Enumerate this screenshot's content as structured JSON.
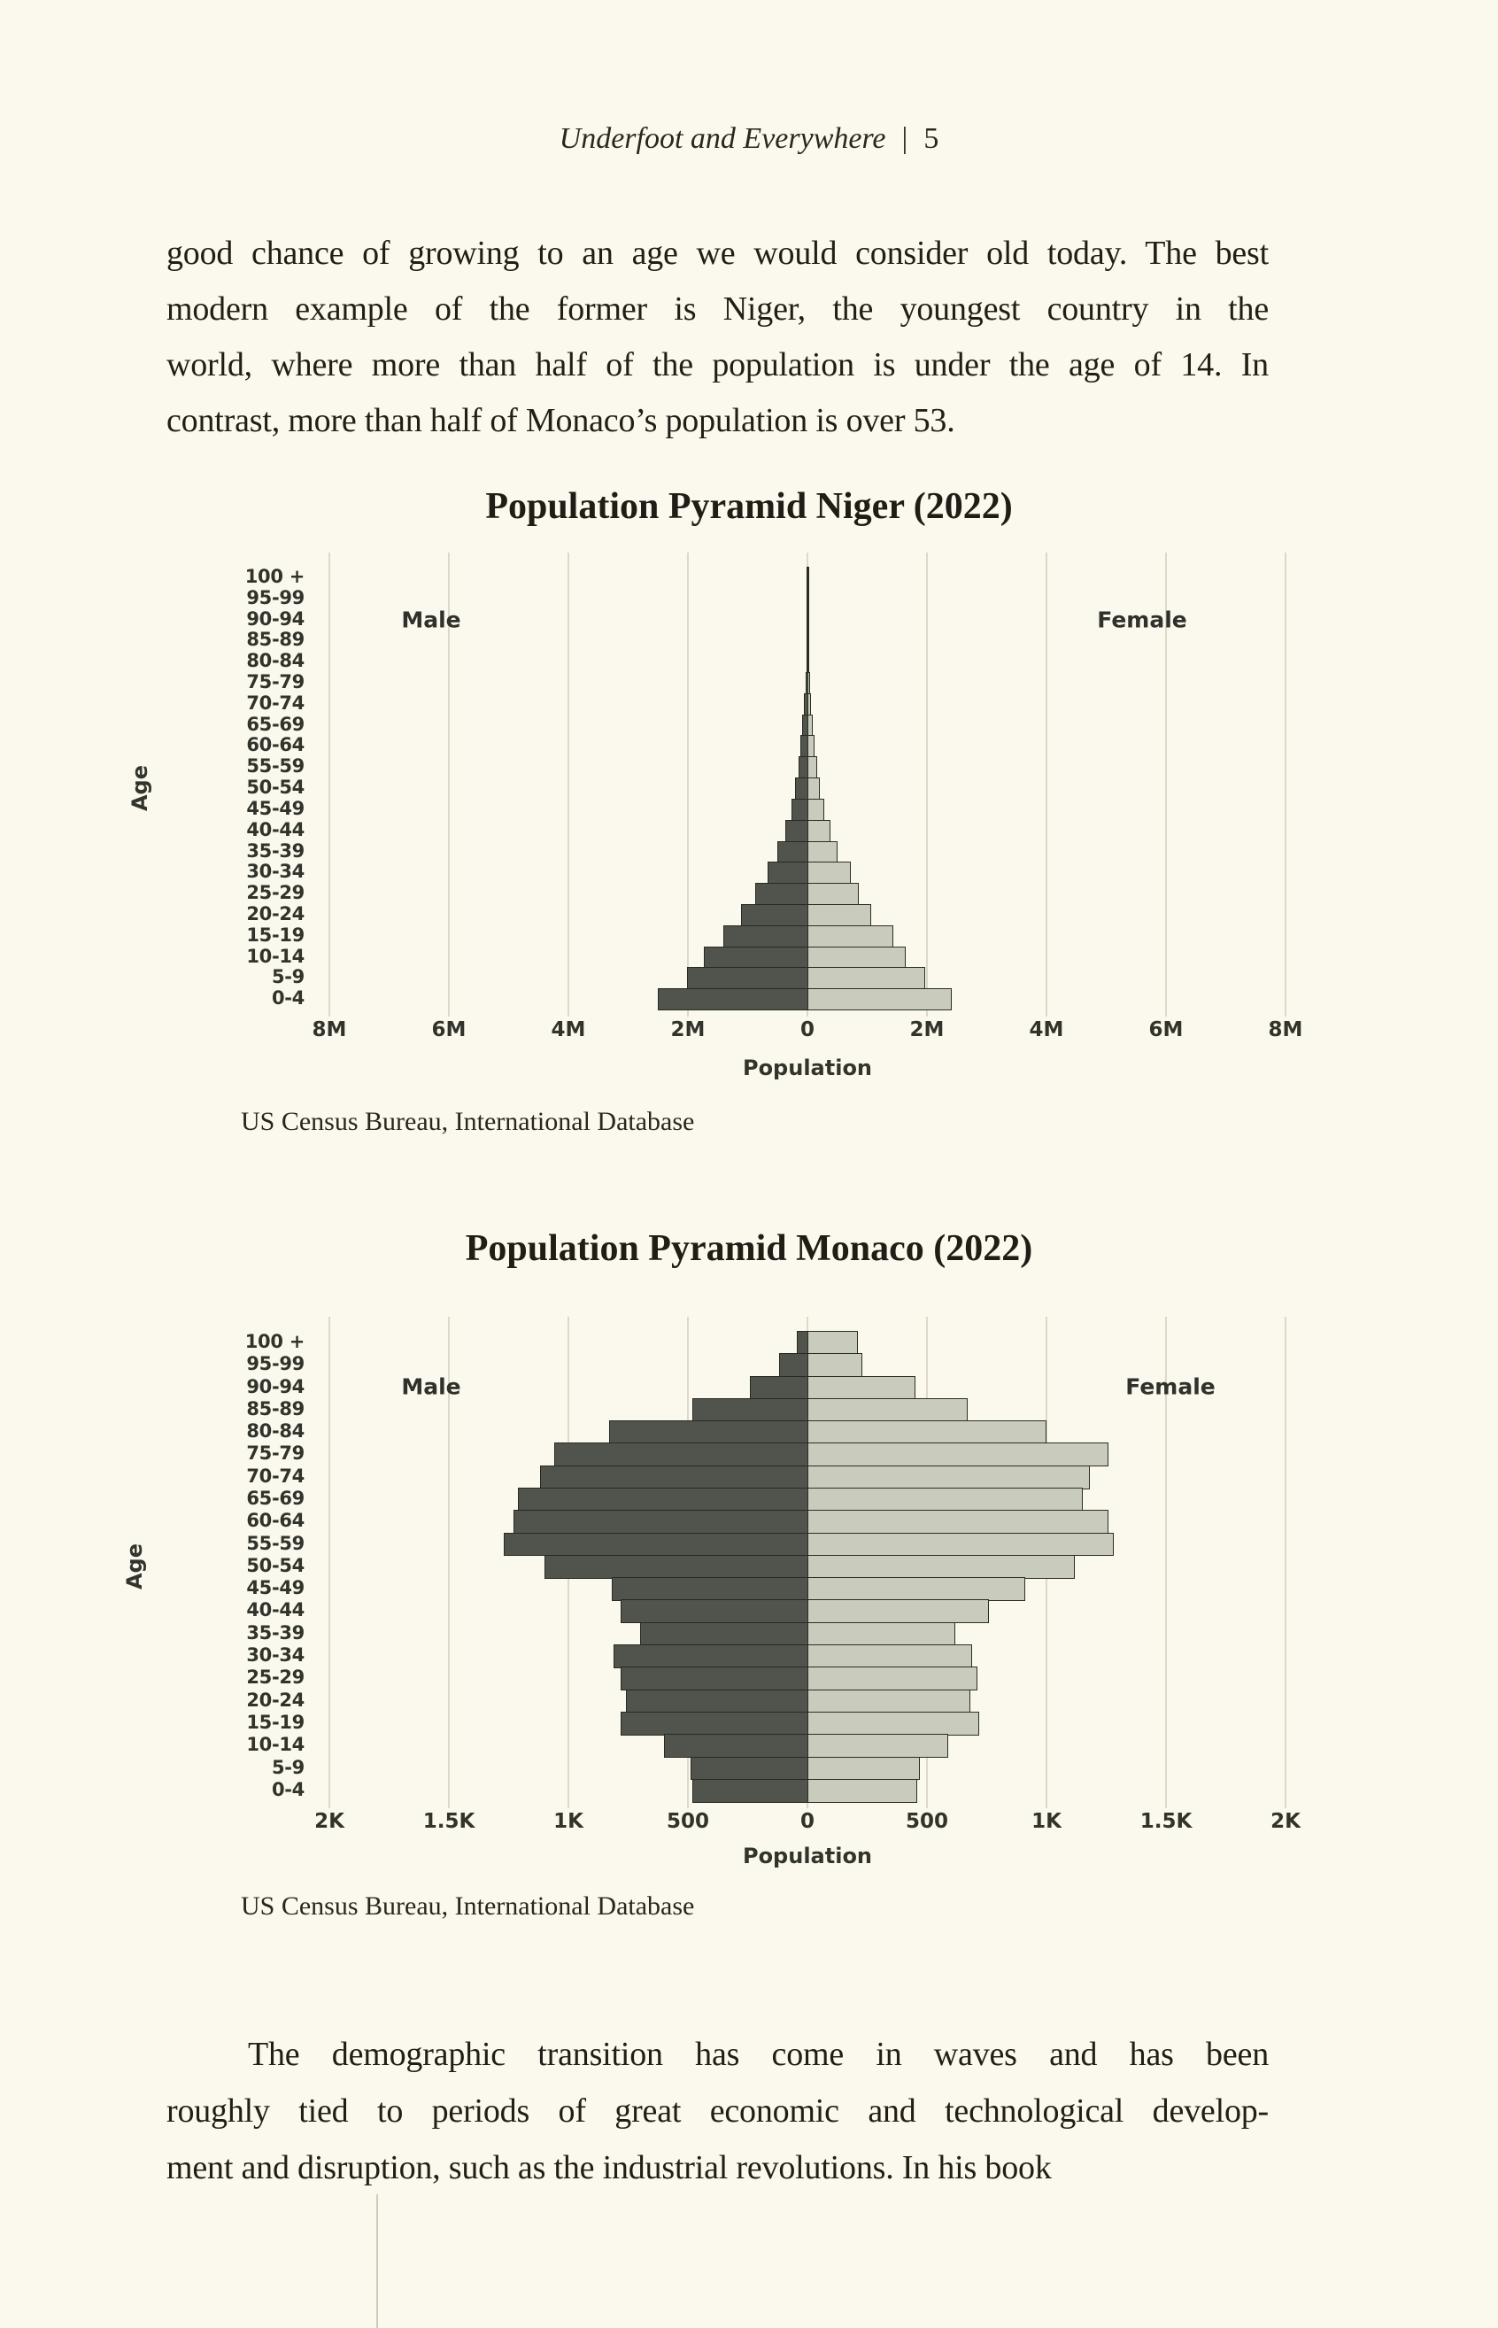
{
  "page": {
    "background": "#fbf9ee",
    "header": {
      "book_title": "Underfoot and Everywhere",
      "separator": "|",
      "page_number": "5"
    },
    "intro_paragraph_lines": [
      "good chance of growing to an age we would consider old today. The best",
      "modern example of the former is Niger, the youngest country in the",
      "world, where more than half of the population is under the age of 14. In",
      "contrast, more than half of Monaco’s population is over 53."
    ],
    "closing_paragraph_lines": [
      "The demographic transition has come in waves and has been",
      "roughly tied to periods of great economic and technological develop-",
      "ment and disruption, such as the industrial revolutions. In his book"
    ]
  },
  "chart_data": [
    {
      "type": "bar",
      "variant": "population-pyramid",
      "title": "Population Pyramid Niger (2022)",
      "source": "US Census Bureau, International Database",
      "xlabel": "Population",
      "ylabel": "Age",
      "male_label": "Male",
      "female_label": "Female",
      "unit": "millions",
      "axis_max": 8,
      "grid": true,
      "x_ticks": [
        "8M",
        "6M",
        "4M",
        "2M",
        "0",
        "2M",
        "4M",
        "6M",
        "8M"
      ],
      "age_groups_top_to_bottom": [
        "100 +",
        "95-99",
        "90-94",
        "85-89",
        "80-84",
        "75-79",
        "70-74",
        "65-69",
        "60-64",
        "55-59",
        "50-54",
        "45-49",
        "40-44",
        "35-39",
        "30-34",
        "25-29",
        "20-24",
        "15-19",
        "10-14",
        "5-9",
        "0-4"
      ],
      "series": [
        {
          "name": "Male",
          "side": "left",
          "color": "#50544c",
          "values_top_to_bottom": [
            0.001,
            0.002,
            0.005,
            0.012,
            0.022,
            0.035,
            0.055,
            0.082,
            0.115,
            0.155,
            0.205,
            0.27,
            0.37,
            0.5,
            0.66,
            0.87,
            1.11,
            1.41,
            1.73,
            2.02,
            2.5
          ]
        },
        {
          "name": "Female",
          "side": "right",
          "color": "#c9cbbd",
          "values_top_to_bottom": [
            0.001,
            0.003,
            0.006,
            0.013,
            0.024,
            0.038,
            0.06,
            0.088,
            0.122,
            0.163,
            0.214,
            0.28,
            0.38,
            0.51,
            0.72,
            0.86,
            1.07,
            1.43,
            1.64,
            1.97,
            2.42
          ]
        }
      ]
    },
    {
      "type": "bar",
      "variant": "population-pyramid",
      "title": "Population Pyramid Monaco (2022)",
      "source": "US Census Bureau, International Database",
      "xlabel": "Population",
      "ylabel": "Age",
      "male_label": "Male",
      "female_label": "Female",
      "unit": "thousands",
      "axis_max": 2,
      "grid": true,
      "x_ticks": [
        "2K",
        "1.5K",
        "1K",
        "500",
        "0",
        "500",
        "1K",
        "1.5K",
        "2K"
      ],
      "age_groups_top_to_bottom": [
        "100 +",
        "95-99",
        "90-94",
        "85-89",
        "80-84",
        "75-79",
        "70-74",
        "65-69",
        "60-64",
        "55-59",
        "50-54",
        "45-49",
        "40-44",
        "35-39",
        "30-34",
        "25-29",
        "20-24",
        "15-19",
        "10-14",
        "5-9",
        "0-4"
      ],
      "series": [
        {
          "name": "Male",
          "side": "left",
          "color": "#50544c",
          "values_top_to_bottom": [
            0.045,
            0.12,
            0.24,
            0.48,
            0.83,
            1.06,
            1.12,
            1.21,
            1.23,
            1.27,
            1.1,
            0.82,
            0.78,
            0.7,
            0.81,
            0.78,
            0.76,
            0.78,
            0.6,
            0.49,
            0.48
          ]
        },
        {
          "name": "Female",
          "side": "right",
          "color": "#c9cbbd",
          "values_top_to_bottom": [
            0.21,
            0.23,
            0.45,
            0.67,
            1.0,
            1.26,
            1.18,
            1.15,
            1.26,
            1.28,
            1.12,
            0.91,
            0.76,
            0.62,
            0.69,
            0.71,
            0.68,
            0.72,
            0.59,
            0.47,
            0.46
          ]
        }
      ]
    }
  ]
}
